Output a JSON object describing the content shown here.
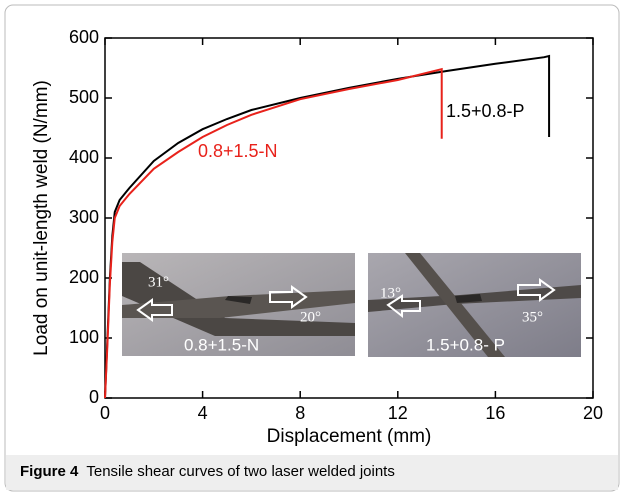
{
  "chart_data": {
    "type": "line",
    "xlabel": "Displacement (mm)",
    "ylabel": "Load on unit-length weld (N/mm)",
    "xlim": [
      0,
      20
    ],
    "xticks": [
      0,
      4,
      8,
      12,
      16,
      20
    ],
    "ylim": [
      0,
      600
    ],
    "yticks": [
      0,
      100,
      200,
      300,
      400,
      500,
      600
    ],
    "series": [
      {
        "name": "1.5+0.8-P",
        "color": "#000000",
        "x": [
          0,
          0.1,
          0.2,
          0.3,
          0.4,
          0.6,
          1,
          2,
          3,
          4,
          5,
          6,
          8,
          10,
          12,
          14,
          16,
          18,
          18.2,
          18.2
        ],
        "values": [
          0,
          100,
          200,
          270,
          310,
          330,
          350,
          395,
          425,
          448,
          465,
          480,
          500,
          517,
          532,
          545,
          557,
          568,
          570,
          435
        ]
      },
      {
        "name": "0.8+1.5-N",
        "color": "#e8221b",
        "x": [
          0,
          0.1,
          0.2,
          0.3,
          0.4,
          0.6,
          1,
          2,
          3,
          4,
          5,
          6,
          8,
          10,
          12,
          13.8,
          13.8
        ],
        "values": [
          0,
          90,
          190,
          260,
          300,
          320,
          340,
          382,
          410,
          435,
          455,
          472,
          498,
          515,
          530,
          548,
          432
        ]
      }
    ],
    "insets": [
      {
        "angles": [
          "31°",
          "20°"
        ],
        "label": "0.8+1.5-N"
      },
      {
        "angles": [
          "13°",
          "35°"
        ],
        "label": "1.5+0.8- P"
      }
    ]
  },
  "caption": {
    "label": "Figure 4",
    "text": "Tensile shear curves of two laser welded joints"
  }
}
